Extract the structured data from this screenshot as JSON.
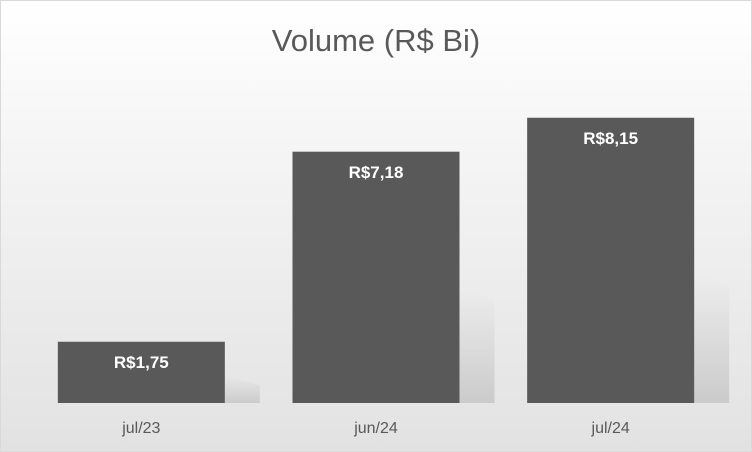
{
  "chart_data": {
    "type": "bar",
    "title": "Volume (R$ Bi)",
    "categories": [
      "jul/23",
      "jun/24",
      "jul/24"
    ],
    "values": [
      1.75,
      7.18,
      8.15
    ],
    "value_labels": [
      "R$1,75",
      "R$7,18",
      "R$8,15"
    ],
    "color": "#595959"
  }
}
